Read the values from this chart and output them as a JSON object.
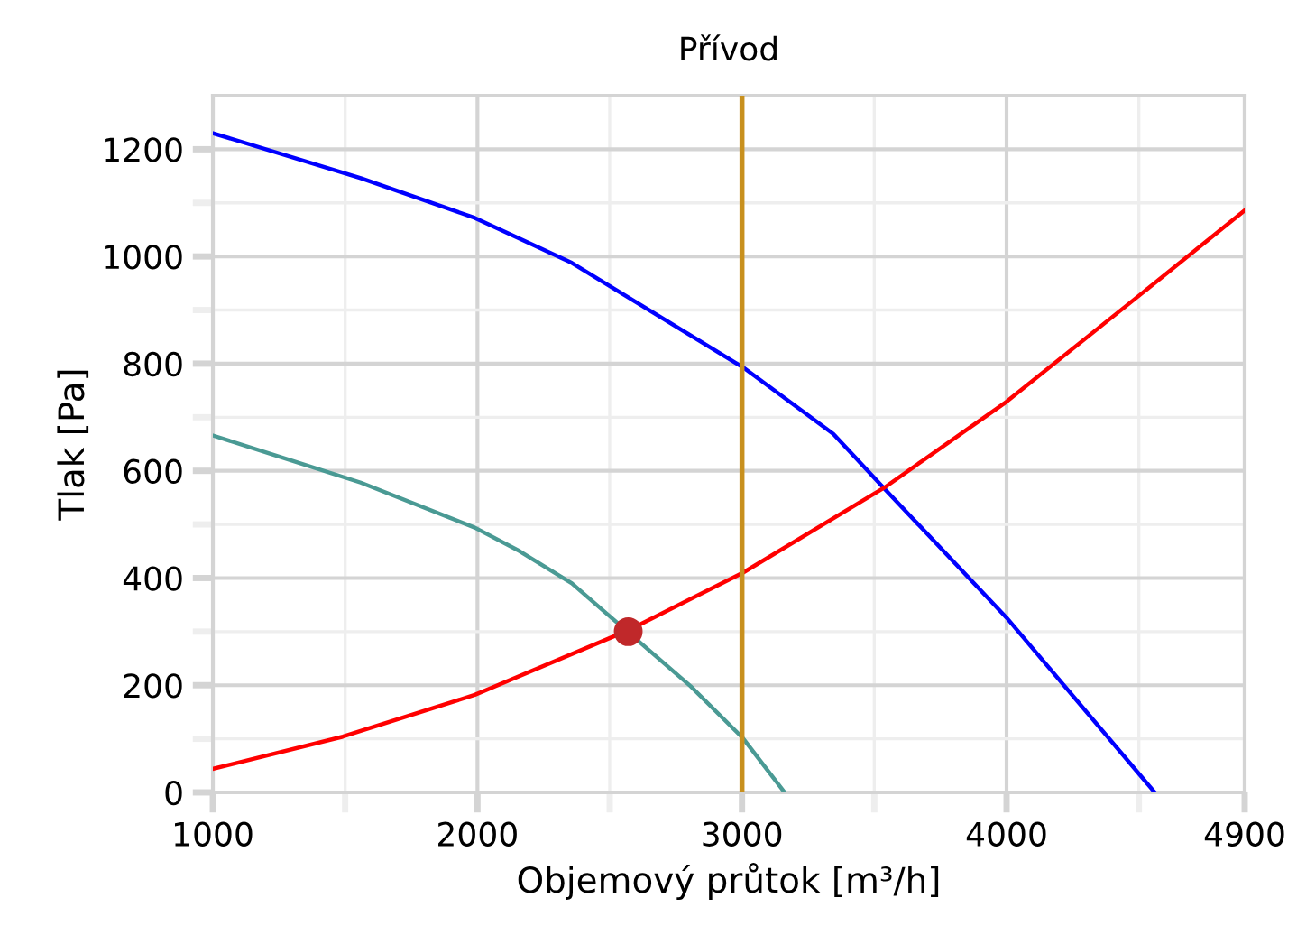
{
  "chart_data": {
    "type": "line",
    "title": "Přívod",
    "xlabel": "Objemový průtok [m³/h]",
    "ylabel": "Tlak [Pa]",
    "xlim": [
      1000,
      4900
    ],
    "ylim": [
      0,
      1300
    ],
    "xticks": [
      1000,
      2000,
      3000,
      4000,
      4900
    ],
    "yticks": [
      0,
      200,
      400,
      600,
      800,
      1000,
      1200
    ],
    "grid": true,
    "marker": "none",
    "line_style": "solid",
    "series": [
      {
        "color": "#0000ff",
        "x": [
          1000,
          1559,
          1990,
          2357,
          3004,
          3345,
          3536,
          4000,
          4560
        ],
        "values": [
          1230,
          1146,
          1072,
          988,
          793,
          669,
          568,
          326,
          0
        ]
      },
      {
        "color": "#4a9a94",
        "x": [
          1000,
          1559,
          1990,
          2160,
          2357,
          2450,
          2806,
          3004,
          3161
        ],
        "values": [
          666,
          578,
          494,
          450,
          390,
          350,
          198,
          101,
          0
        ]
      },
      {
        "color": "#ff0000",
        "x": [
          1000,
          1491,
          1990,
          2568,
          3004,
          3536,
          4000,
          4511,
          4900
        ],
        "values": [
          44,
          104,
          182,
          302,
          410,
          568,
          729,
          931,
          1086
        ]
      },
      {
        "type": "scatter",
        "marker": "circle",
        "color": "#c0282a",
        "x": [
          2570
        ],
        "values": [
          300
        ]
      }
    ],
    "ref_lines": [
      {
        "axis": "x",
        "value": 3000,
        "color": "#c8901e"
      }
    ]
  }
}
